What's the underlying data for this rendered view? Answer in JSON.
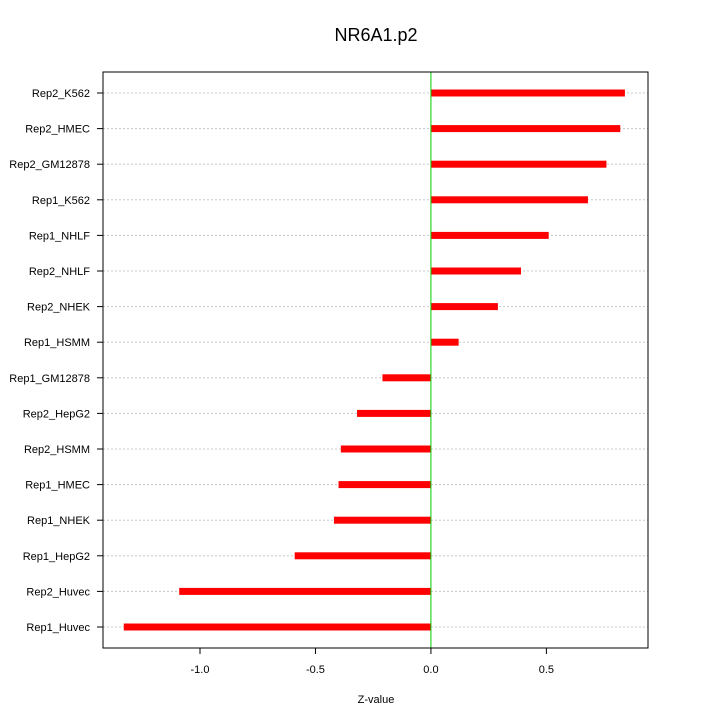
{
  "chart_data": {
    "type": "bar",
    "orientation": "horizontal",
    "title": "NR6A1.p2",
    "xlabel": "Z-value",
    "ylabel": "",
    "xlim": [
      -1.42,
      0.94
    ],
    "xticks": [
      -1.0,
      -0.5,
      0.0,
      0.5
    ],
    "xtick_labels": [
      "-1.0",
      "-0.5",
      "0.0",
      "0.5"
    ],
    "grid": "horizontal dotted",
    "categories": [
      "Rep2_K562",
      "Rep2_HMEC",
      "Rep2_GM12878",
      "Rep1_K562",
      "Rep1_NHLF",
      "Rep2_NHLF",
      "Rep2_NHEK",
      "Rep1_HSMM",
      "Rep1_GM12878",
      "Rep2_HepG2",
      "Rep2_HSMM",
      "Rep1_HMEC",
      "Rep1_NHEK",
      "Rep1_HepG2",
      "Rep2_Huvec",
      "Rep1_Huvec"
    ],
    "values": [
      0.84,
      0.82,
      0.76,
      0.68,
      0.51,
      0.39,
      0.29,
      0.12,
      -0.21,
      -0.32,
      -0.39,
      -0.4,
      -0.42,
      -0.59,
      -1.09,
      -1.33
    ],
    "colors": {
      "bar": "#ff0000",
      "zero_line": "#00cc00",
      "grid": "#c8c8c8",
      "axis": "#000000"
    }
  }
}
